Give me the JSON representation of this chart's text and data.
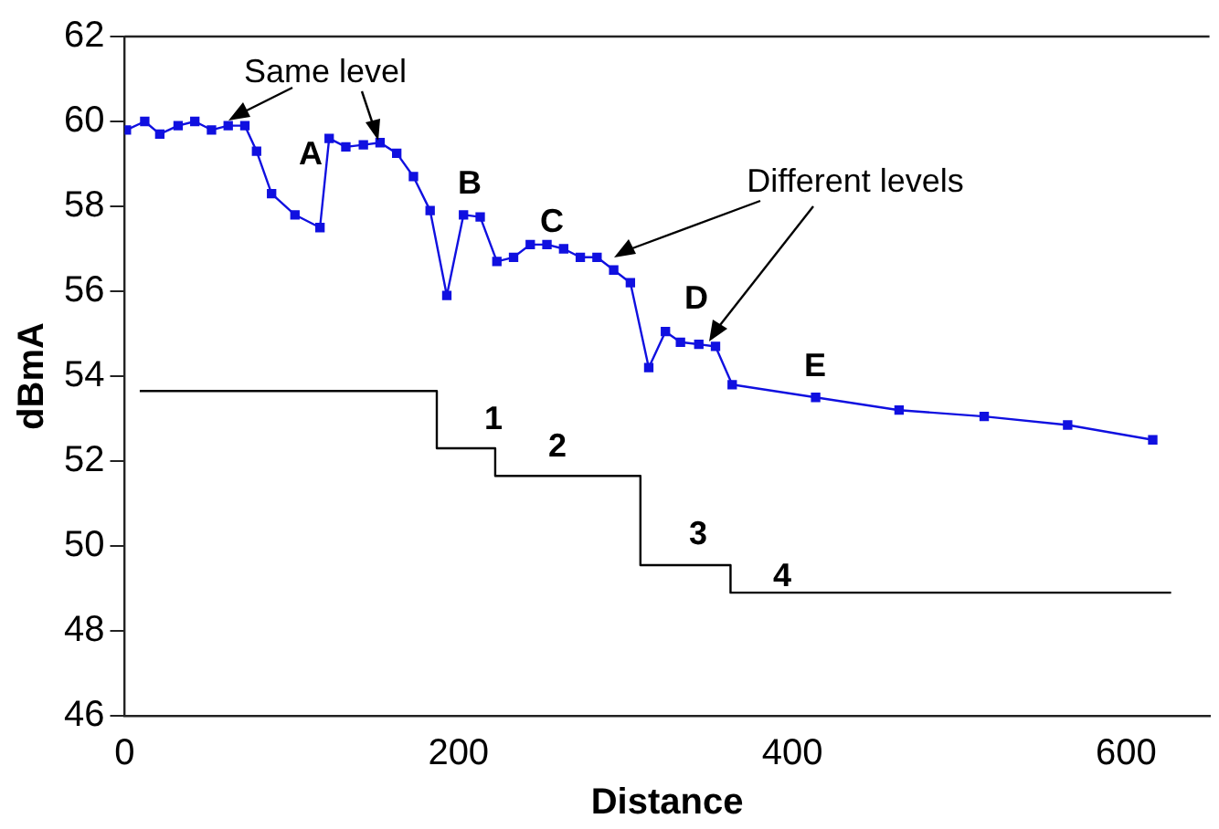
{
  "chart_data": {
    "type": "line",
    "xlabel": "Distance",
    "ylabel": "dBmA",
    "xlim": [
      0,
      650
    ],
    "xticks": [
      0,
      200,
      400,
      600
    ],
    "ylim": [
      46,
      62
    ],
    "yticks": [
      46,
      48,
      50,
      52,
      54,
      56,
      58,
      60,
      62
    ],
    "grid": false,
    "legend": false,
    "marker": "square",
    "line_style": "solid",
    "series": [
      {
        "type": "line",
        "color": "#1010e0",
        "x": [
          1,
          12,
          21,
          32,
          42,
          52,
          62,
          72,
          79,
          88,
          102,
          117,
          122.5,
          132.5,
          143,
          153,
          163,
          173,
          183,
          193,
          203,
          213,
          223,
          233,
          243,
          253,
          263,
          273,
          283,
          293,
          303,
          314,
          324,
          333,
          344,
          354,
          364,
          414,
          464,
          515,
          565,
          616
        ],
        "values": [
          59.8,
          60.0,
          59.7,
          59.9,
          60.0,
          59.8,
          59.9,
          59.9,
          59.3,
          58.3,
          57.8,
          57.5,
          59.6,
          59.4,
          59.45,
          59.5,
          59.25,
          58.7,
          57.9,
          55.9,
          57.8,
          57.75,
          56.7,
          56.8,
          57.1,
          57.1,
          57.0,
          56.8,
          56.8,
          56.5,
          56.2,
          54.2,
          55.05,
          54.8,
          54.75,
          54.7,
          53.8,
          53.5,
          53.2,
          53.05,
          52.85,
          52.5
        ]
      },
      {
        "type": "step",
        "color": "#000000",
        "marker": "none",
        "x": [
          9,
          187,
          222,
          309,
          363,
          627
        ],
        "values": [
          53.65,
          52.3,
          51.65,
          49.55,
          48.9,
          48.9
        ]
      }
    ],
    "annotations": [
      "Same level",
      "Different levels",
      "A",
      "B",
      "C",
      "D",
      "E",
      "1",
      "2",
      "3",
      "4"
    ]
  }
}
